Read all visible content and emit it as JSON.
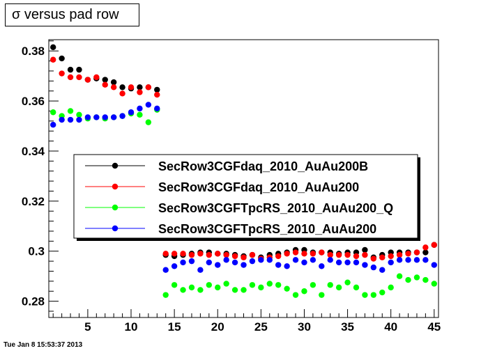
{
  "title": "σ versus pad row",
  "timestamp": "Tue Jan  8 15:53:37 2013",
  "chart_data": {
    "type": "scatter",
    "title": "σ versus pad row",
    "xlabel": "",
    "ylabel": "",
    "xlim": [
      0.5,
      45.5
    ],
    "ylim": [
      0.2735,
      0.3845
    ],
    "x_ticks": [
      5,
      10,
      15,
      20,
      25,
      30,
      35,
      40,
      45
    ],
    "y_ticks": [
      0.28,
      0.3,
      0.32,
      0.34,
      0.36,
      0.38
    ],
    "y_tick_labels": [
      "0.28",
      "0.3",
      "0.32",
      "0.34",
      "0.36",
      "0.38"
    ],
    "legend_position": "center-left",
    "series": [
      {
        "name": "SecRow3CGFdaq_2010_AuAu200B",
        "color": "#000000",
        "x": [
          1,
          2,
          3,
          4,
          5,
          6,
          7,
          8,
          9,
          10,
          11,
          12,
          13,
          14,
          15,
          16,
          17,
          18,
          19,
          20,
          21,
          22,
          23,
          24,
          25,
          26,
          27,
          28,
          29,
          30,
          31,
          32,
          33,
          34,
          35,
          36,
          37,
          38,
          39,
          40,
          41,
          42,
          43,
          44,
          45
        ],
        "y": [
          0.3815,
          0.377,
          0.3725,
          0.3725,
          0.3685,
          0.369,
          0.3685,
          0.3675,
          0.3655,
          0.365,
          0.3655,
          0.3655,
          0.3645,
          0.2985,
          0.298,
          0.2985,
          0.299,
          0.2995,
          0.2995,
          0.299,
          0.299,
          0.2985,
          0.298,
          0.2985,
          0.2975,
          0.2985,
          0.299,
          0.2995,
          0.3005,
          0.3005,
          0.2995,
          0.2995,
          0.2995,
          0.299,
          0.2995,
          0.2995,
          0.3005,
          0.2975,
          0.2985,
          0.2995,
          0.2995,
          0.2995,
          0.2995,
          0.2995,
          0.3025
        ]
      },
      {
        "name": "SecRow3CGFdaq_2010_AuAu200",
        "color": "#ff0000",
        "x": [
          1,
          2,
          3,
          4,
          5,
          6,
          7,
          8,
          9,
          10,
          11,
          12,
          13,
          14,
          15,
          16,
          17,
          18,
          19,
          20,
          21,
          22,
          23,
          24,
          25,
          26,
          27,
          28,
          29,
          30,
          31,
          32,
          33,
          34,
          35,
          36,
          37,
          38,
          39,
          40,
          41,
          42,
          43,
          44,
          45
        ],
        "y": [
          0.3765,
          0.371,
          0.3695,
          0.3695,
          0.3685,
          0.3695,
          0.3665,
          0.3655,
          0.363,
          0.3655,
          0.3635,
          0.3655,
          0.3625,
          0.299,
          0.299,
          0.299,
          0.2985,
          0.299,
          0.2985,
          0.299,
          0.2985,
          0.298,
          0.2975,
          0.2985,
          0.297,
          0.2975,
          0.298,
          0.299,
          0.2995,
          0.299,
          0.299,
          0.2995,
          0.2985,
          0.2985,
          0.2985,
          0.298,
          0.2985,
          0.297,
          0.2975,
          0.298,
          0.2985,
          0.299,
          0.2995,
          0.3015,
          0.3025
        ]
      },
      {
        "name": "SecRow3CGFTpcRS_2010_AuAu200_Q",
        "color": "#00ff00",
        "x": [
          1,
          2,
          3,
          4,
          5,
          6,
          7,
          8,
          9,
          10,
          11,
          12,
          13,
          14,
          15,
          16,
          17,
          18,
          19,
          20,
          21,
          22,
          23,
          24,
          25,
          26,
          27,
          28,
          29,
          30,
          31,
          32,
          33,
          34,
          35,
          36,
          37,
          38,
          39,
          40,
          41,
          42,
          43,
          44,
          45
        ],
        "y": [
          0.3555,
          0.354,
          0.356,
          0.3545,
          0.353,
          0.3535,
          0.353,
          0.3535,
          0.354,
          0.355,
          0.3545,
          0.3515,
          0.3565,
          0.2825,
          0.2865,
          0.2845,
          0.2855,
          0.2845,
          0.2865,
          0.2855,
          0.287,
          0.2845,
          0.2845,
          0.2865,
          0.2855,
          0.287,
          0.2865,
          0.285,
          0.2825,
          0.284,
          0.2865,
          0.2825,
          0.2865,
          0.2855,
          0.2875,
          0.2855,
          0.2825,
          0.2825,
          0.2835,
          0.2855,
          0.29,
          0.2885,
          0.2895,
          0.2885,
          0.287
        ]
      },
      {
        "name": "SecRow3CGFTpcRS_2010_AuAu200",
        "color": "#0000ff",
        "x": [
          1,
          2,
          3,
          4,
          5,
          6,
          7,
          8,
          9,
          10,
          11,
          12,
          13,
          14,
          15,
          16,
          17,
          18,
          19,
          20,
          21,
          22,
          23,
          24,
          25,
          26,
          27,
          28,
          29,
          30,
          31,
          32,
          33,
          34,
          35,
          36,
          37,
          38,
          39,
          40,
          41,
          42,
          43,
          44,
          45
        ],
        "y": [
          0.3505,
          0.3525,
          0.3525,
          0.3525,
          0.3535,
          0.3535,
          0.3535,
          0.3535,
          0.354,
          0.3555,
          0.357,
          0.3585,
          0.357,
          0.2925,
          0.294,
          0.2955,
          0.296,
          0.2925,
          0.2955,
          0.2945,
          0.2965,
          0.2955,
          0.2945,
          0.296,
          0.2965,
          0.2965,
          0.2945,
          0.294,
          0.2965,
          0.2955,
          0.2965,
          0.294,
          0.2965,
          0.2955,
          0.2955,
          0.2955,
          0.2945,
          0.2935,
          0.2925,
          0.2955,
          0.2965,
          0.2965,
          0.2965,
          0.2965,
          0.2945
        ]
      }
    ]
  }
}
